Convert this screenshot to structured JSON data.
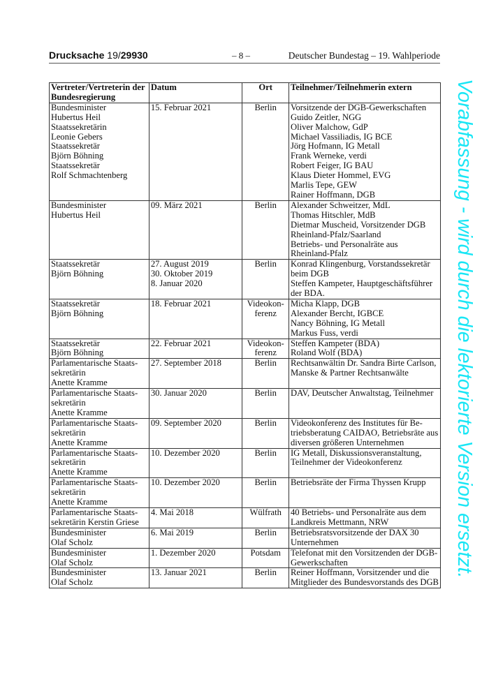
{
  "header": {
    "doc_label": "Drucksache",
    "doc_number_prefix": "19/",
    "doc_number": "29930",
    "page": "– 8 –",
    "institution": "Deutscher Bundestag – 19. Wahlperiode"
  },
  "watermark": "Vorabfassung - wird durch die lektorierte Version ersetzt.",
  "table": {
    "columns": [
      [
        "Vertreter/Vertreterin der",
        "Bundesregierung"
      ],
      [
        "Datum"
      ],
      [
        "Ort"
      ],
      [
        "Teilnehmer/Teilnehmerin extern"
      ]
    ],
    "rows": [
      [
        [
          "Bundesminister",
          "Hubertus Heil",
          "Staatssekretärin",
          "Leonie Gebers",
          "Staatssekretär",
          "Björn Böhning",
          "Staatssekretär",
          "Rolf Schmachtenberg"
        ],
        [
          "15. Februar 2021"
        ],
        [
          "Berlin"
        ],
        [
          "Vorsitzende der DGB-Gewerkschaften",
          "Guido Zeitler, NGG",
          "Oliver Malchow, GdP",
          "Michael Vassiliadis, IG BCE",
          "Jörg Hofmann, IG Metall",
          "Frank Werneke, verdi",
          "Robert Feiger, IG BAU",
          "Klaus Dieter Hommel, EVG",
          "Marlis Tepe, GEW",
          "Rainer Hoffmann, DGB"
        ]
      ],
      [
        [
          "Bundesminister",
          "Hubertus Heil"
        ],
        [
          "09. März 2021"
        ],
        [
          "Berlin"
        ],
        [
          "Alexander Schweitzer, MdL",
          "Thomas Hitschler, MdB",
          "Dietmar Muscheid, Vorsitzender DGB",
          "Rheinland-Pfalz/Saarland",
          "Betriebs- und Personalräte aus",
          "Rheinland-Pfalz"
        ]
      ],
      [
        [
          "Staatssekretär",
          "Björn Böhning"
        ],
        [
          "27. August 2019",
          "30. Oktober 2019",
          "8. Januar 2020"
        ],
        [
          "Berlin"
        ],
        [
          "Konrad Klingenburg, Vorstandssekretär",
          "beim DGB",
          "Steffen Kampeter, Hauptgeschäftsführer",
          "der BDA."
        ]
      ],
      [
        [
          "Staatssekretär",
          "Björn Böhning"
        ],
        [
          "18. Februar 2021"
        ],
        [
          "Videokon-",
          "ferenz"
        ],
        [
          "Micha Klapp, DGB",
          "Alexander Bercht, IGBCE",
          "Nancy Böhning, IG Metall",
          "Markus Fuss, verdi"
        ]
      ],
      [
        [
          "Staatssekretär",
          "Björn Böhning"
        ],
        [
          "22. Februar 2021"
        ],
        [
          "Videokon-",
          "ferenz"
        ],
        [
          "Steffen Kampeter (BDA)",
          "Roland Wolf (BDA)"
        ]
      ],
      [
        [
          "Parlamentarische Staats-",
          "sekretärin",
          "Anette Kramme"
        ],
        [
          "27. September 2018"
        ],
        [
          "Berlin"
        ],
        [
          "Rechtsanwältin Dr. Sandra Birte Carlson,",
          "Manske & Partner Rechtsanwälte"
        ]
      ],
      [
        [
          "Parlamentarische Staats-",
          "sekretärin",
          "Anette Kramme"
        ],
        [
          "30. Januar 2020"
        ],
        [
          "Berlin"
        ],
        [
          "DAV, Deutscher Anwaltstag, Teilnehmer"
        ]
      ],
      [
        [
          "Parlamentarische Staats-",
          "sekretärin",
          "Anette Kramme"
        ],
        [
          "09. September 2020"
        ],
        [
          "Berlin"
        ],
        [
          "Videokonferenz des Institutes für Be-",
          "triebsberatung CAIDAO, Betriebsräte aus",
          "diversen größeren Unternehmen"
        ]
      ],
      [
        [
          "Parlamentarische Staats-",
          "sekretärin",
          "Anette Kramme"
        ],
        [
          "10. Dezember 2020"
        ],
        [
          "Berlin"
        ],
        [
          "IG Metall, Diskussionsveranstaltung,",
          "Teilnehmer der Videokonferenz"
        ]
      ],
      [
        [
          "Parlamentarische Staats-",
          "sekretärin",
          "Anette Kramme"
        ],
        [
          "10. Dezember 2020"
        ],
        [
          "Berlin"
        ],
        [
          "Betriebsräte der Firma Thyssen Krupp"
        ]
      ],
      [
        [
          "Parlamentarische Staats-",
          "sekretärin Kerstin Griese"
        ],
        [
          "4. Mai 2018"
        ],
        [
          "Wülfrath"
        ],
        [
          "40 Betriebs- und Personalräte aus dem",
          "Landkreis Mettmann, NRW"
        ]
      ],
      [
        [
          "Bundesminister",
          "Olaf Scholz"
        ],
        [
          "6. Mai 2019"
        ],
        [
          "Berlin"
        ],
        [
          "Betriebsratsvorsitzende der DAX 30",
          "Unternehmen"
        ]
      ],
      [
        [
          "Bundesminister",
          "Olaf Scholz"
        ],
        [
          "1. Dezember 2020"
        ],
        [
          "Potsdam"
        ],
        [
          "Telefonat mit den Vorsitzenden der DGB-",
          "Gewerkschaften"
        ]
      ],
      [
        [
          "Bundesminister",
          "Olaf Scholz"
        ],
        [
          "13. Januar 2021"
        ],
        [
          "Berlin"
        ],
        [
          "Reiner Hoffmann, Vorsitzender und die",
          "Mitglieder des Bundesvorstands des DGB"
        ]
      ]
    ]
  },
  "colors": {
    "watermark": "#19e6f5",
    "text": "#111111"
  }
}
